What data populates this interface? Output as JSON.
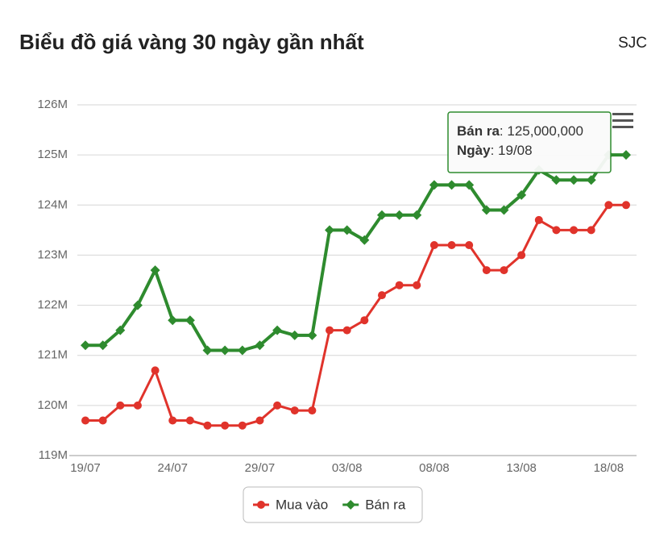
{
  "chart_data": {
    "type": "line",
    "title": "Biểu đồ giá vàng 30 ngày gần nhất",
    "source": "SJC",
    "categories": [
      "19/07",
      null,
      null,
      null,
      null,
      "24/07",
      null,
      null,
      null,
      null,
      "29/07",
      null,
      null,
      null,
      null,
      "03/08",
      null,
      null,
      null,
      null,
      "08/08",
      null,
      null,
      null,
      null,
      "13/08",
      null,
      null,
      null,
      null,
      "18/08",
      null
    ],
    "series": [
      {
        "name": "Mua vào",
        "color": "#e0332b",
        "marker": "circle",
        "values": [
          119700000,
          119700000,
          120000000,
          120000000,
          120700000,
          119700000,
          119700000,
          119600000,
          119600000,
          119600000,
          119700000,
          120000000,
          119900000,
          119900000,
          121500000,
          121500000,
          121700000,
          122200000,
          122400000,
          122400000,
          123200000,
          123200000,
          123200000,
          122700000,
          122700000,
          123000000,
          123700000,
          123500000,
          123500000,
          123500000,
          124000000,
          124000000
        ]
      },
      {
        "name": "Bán ra",
        "color": "#2e8b2e",
        "marker": "diamond",
        "values": [
          121200000,
          121200000,
          121500000,
          122000000,
          122700000,
          121700000,
          121700000,
          121100000,
          121100000,
          121100000,
          121200000,
          121500000,
          121400000,
          121400000,
          123500000,
          123500000,
          123300000,
          123800000,
          123800000,
          123800000,
          124400000,
          124400000,
          124400000,
          123900000,
          123900000,
          124200000,
          124700000,
          124500000,
          124500000,
          124500000,
          125000000,
          125000000
        ]
      }
    ],
    "ylim": [
      119000000,
      126000000
    ],
    "yticks": [
      {
        "value": 119000000,
        "label": "119M"
      },
      {
        "value": 120000000,
        "label": "120M"
      },
      {
        "value": 121000000,
        "label": "121M"
      },
      {
        "value": 122000000,
        "label": "122M"
      },
      {
        "value": 123000000,
        "label": "123M"
      },
      {
        "value": 124000000,
        "label": "124M"
      },
      {
        "value": 125000000,
        "label": "125M"
      },
      {
        "value": 126000000,
        "label": "126M"
      }
    ],
    "grid": true,
    "legend": "bottom",
    "tooltip": {
      "value": 125000000,
      "label": "125,000,000",
      "date_label": "Ngày",
      "date": "19/08"
    }
  }
}
